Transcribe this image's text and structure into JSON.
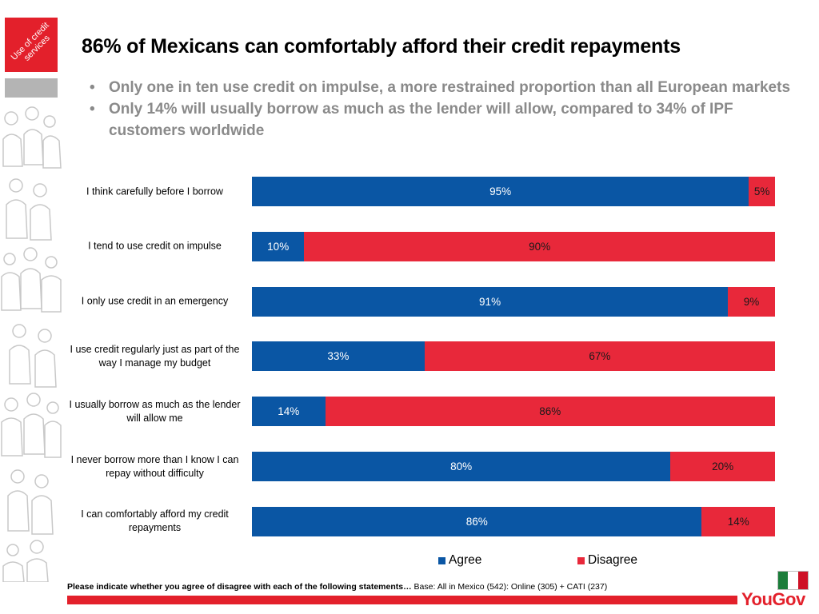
{
  "header": {
    "section_tag": "Use of credit services",
    "title": "86% of Mexicans can comfortably afford their credit repayments",
    "bullets": [
      "Only one in ten use credit on impulse, a more restrained proportion than all European markets",
      "Only 14% will usually borrow as much as the lender will allow, compared to 34% of IPF customers worldwide"
    ]
  },
  "colors": {
    "agree": "#0a56a4",
    "disagree": "#e8283a",
    "accent": "#e3202b",
    "flag_green": "#1b7d3a",
    "flag_white": "#ffffff",
    "flag_red": "#ce1126"
  },
  "chart_data": {
    "type": "bar",
    "orientation": "horizontal",
    "stacked": true,
    "categories": [
      "I think carefully before I borrow",
      "I tend to use credit on impulse",
      "I only use credit in an emergency",
      "I use credit regularly just as part of the way I manage my budget",
      "I usually borrow as much as the lender will allow me",
      "I never  borrow more than I know I can repay without difficulty",
      "I can comfortably afford my credit repayments"
    ],
    "series": [
      {
        "name": "Agree",
        "values": [
          95,
          10,
          91,
          33,
          14,
          80,
          86
        ]
      },
      {
        "name": "Disagree",
        "values": [
          5,
          90,
          9,
          67,
          86,
          20,
          14
        ]
      }
    ],
    "value_format": "percent",
    "xlim": [
      0,
      100
    ],
    "legend_position": "bottom"
  },
  "footer": {
    "question": "Please indicate whether you agree of disagree with each of the following statements…",
    "base": " Base: All in Mexico (542): Online (305) + CATI (237)",
    "logo": "YouGov"
  }
}
